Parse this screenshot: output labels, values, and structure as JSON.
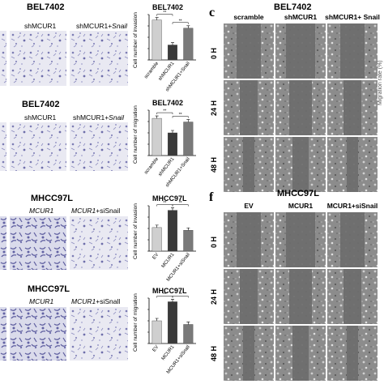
{
  "panel_c_label": "c",
  "panel_f_label": "f",
  "left": {
    "bel_inv": {
      "title": "BEL7402",
      "col1": "shMCUR1",
      "col2_prefix": "shMCUR1+",
      "col2_suffix": "Snail"
    },
    "bel_mig": {
      "title": "BEL7402",
      "col1": "shMCUR1",
      "col2_prefix": "shMCUR1+",
      "col2_suffix": "Snail"
    },
    "mh_inv": {
      "title": "MHCC97L",
      "col1": "MCUR1",
      "col2_prefix": "MCUR1",
      "col2_suffix": "+siSnail"
    },
    "mh_mig": {
      "title": "MHCC97L",
      "col1": "MCUR1",
      "col2_prefix": "MCUR1",
      "col2_suffix": "+siSnall"
    }
  },
  "chart_data": [
    {
      "type": "bar",
      "title": "BEL7402",
      "ylabel": "Cell number of invasion",
      "categories": [
        "scramble",
        "shMCUR1",
        "shMCUR1+Snail"
      ],
      "values": [
        0.88,
        0.33,
        0.7
      ],
      "colors": [
        "#cfcfcf",
        "#3a3a3a",
        "#7a7a7a"
      ],
      "sig": [
        "**",
        "**"
      ],
      "ylim": [
        0,
        1
      ]
    },
    {
      "type": "bar",
      "title": "BEL7402",
      "ylabel": "Cell number of migration",
      "categories": [
        "scramble",
        "shMCUR1",
        "shMCUR1+Snail"
      ],
      "values": [
        0.82,
        0.5,
        0.74
      ],
      "colors": [
        "#cfcfcf",
        "#3a3a3a",
        "#7a7a7a"
      ],
      "sig": [
        "**",
        "**"
      ],
      "ylim": [
        0,
        1
      ]
    },
    {
      "type": "bar",
      "title": "MHCC97L",
      "ylabel": "Cell number of invasion",
      "categories": [
        "EV",
        "MCUR1",
        "MCUR1+siSnail"
      ],
      "values": [
        0.52,
        0.9,
        0.46
      ],
      "colors": [
        "#cfcfcf",
        "#3a3a3a",
        "#7a7a7a"
      ],
      "sig": [
        "**",
        "**"
      ],
      "ylim": [
        0,
        1
      ]
    },
    {
      "type": "bar",
      "title": "MHCC97L",
      "ylabel": "Cell number of migration",
      "categories": [
        "EV",
        "MCUR1",
        "MCUR1+siSnall"
      ],
      "values": [
        0.5,
        0.92,
        0.42
      ],
      "colors": [
        "#cfcfcf",
        "#3a3a3a",
        "#7a7a7a"
      ],
      "sig": [
        "**",
        "**"
      ],
      "ylim": [
        0,
        1
      ]
    }
  ],
  "wound_c": {
    "title": "BEL7402",
    "cols": [
      "scramble",
      "shMCUR1",
      "shMCUR1+ Snail"
    ],
    "rows": [
      "0 H",
      "24 H",
      "48 H"
    ]
  },
  "wound_f": {
    "title": "MHCC97L",
    "cols": [
      "EV",
      "MCUR1",
      "MCUR1+siSnail"
    ],
    "rows": [
      "0 H",
      "24 H",
      "48 H"
    ]
  },
  "right_edge_label": "Migration rate (%)"
}
